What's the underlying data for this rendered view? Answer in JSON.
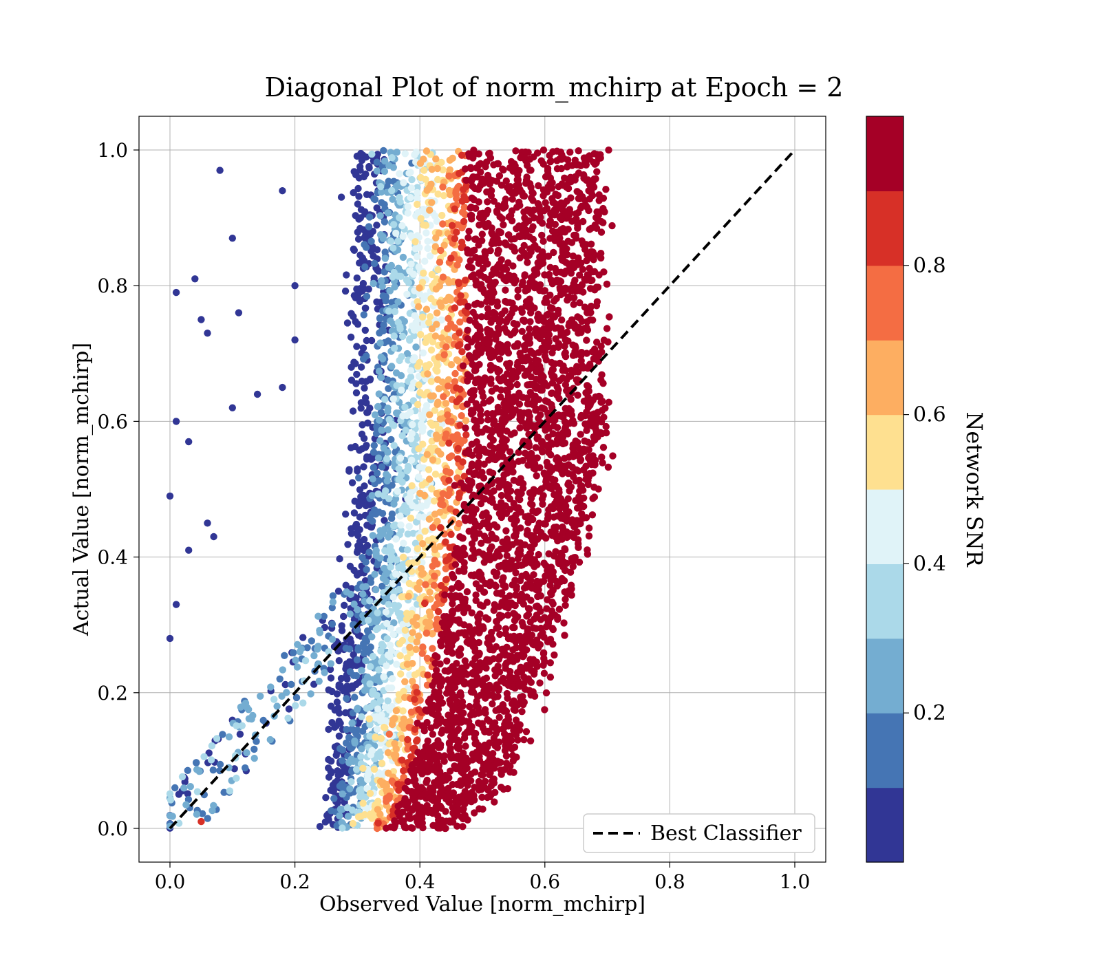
{
  "chart_data": {
    "type": "scatter",
    "title": "Diagonal Plot of norm_mchirp at Epoch = 2",
    "xlabel": "Observed Value [norm_mchirp]",
    "ylabel": "Actual Value [norm_mchirp]",
    "xlim": [
      -0.05,
      1.05
    ],
    "ylim": [
      -0.05,
      1.05
    ],
    "xticks": [
      "0.0",
      "0.2",
      "0.4",
      "0.6",
      "0.8",
      "1.0"
    ],
    "yticks": [
      "0.0",
      "0.2",
      "0.4",
      "0.6",
      "0.8",
      "1.0"
    ],
    "grid": true,
    "colorbar": {
      "label": "Network SNR",
      "range": [
        0.0,
        1.0
      ],
      "ticks": [
        "0.2",
        "0.4",
        "0.6",
        "0.8"
      ],
      "colors": [
        "#313695",
        "#4575b4",
        "#74add1",
        "#abd9e9",
        "#e0f3f8",
        "#fee090",
        "#fdae61",
        "#f46d43",
        "#d73027",
        "#a50026"
      ]
    },
    "reference_line": {
      "name": "Best Classifier",
      "x": [
        0.0,
        1.0
      ],
      "y": [
        0.0,
        1.0
      ],
      "style": "dashed",
      "color": "#000000"
    },
    "legend": {
      "position": "lower-right",
      "entries": [
        "Best Classifier"
      ]
    },
    "series": [
      {
        "description_points": [
          [
            0.0,
            0.49,
            0.05
          ],
          [
            0.01,
            0.6,
            0.05
          ],
          [
            0.01,
            0.79,
            0.05
          ],
          [
            0.03,
            0.57,
            0.05
          ],
          [
            0.04,
            0.81,
            0.05
          ],
          [
            0.05,
            0.75,
            0.05
          ],
          [
            0.06,
            0.73,
            0.05
          ],
          [
            0.08,
            0.97,
            0.05
          ],
          [
            0.1,
            0.87,
            0.05
          ],
          [
            0.11,
            0.76,
            0.05
          ],
          [
            0.1,
            0.62,
            0.05
          ],
          [
            0.14,
            0.64,
            0.05
          ],
          [
            0.18,
            0.94,
            0.05
          ],
          [
            0.2,
            0.8,
            0.05
          ],
          [
            0.2,
            0.72,
            0.05
          ],
          [
            0.18,
            0.65,
            0.05
          ],
          [
            0.0,
            0.28,
            0.05
          ],
          [
            0.01,
            0.33,
            0.05
          ],
          [
            0.03,
            0.41,
            0.05
          ],
          [
            0.06,
            0.45,
            0.05
          ],
          [
            0.07,
            0.43,
            0.05
          ],
          [
            0.05,
            0.01,
            0.85
          ]
        ]
      }
    ]
  }
}
